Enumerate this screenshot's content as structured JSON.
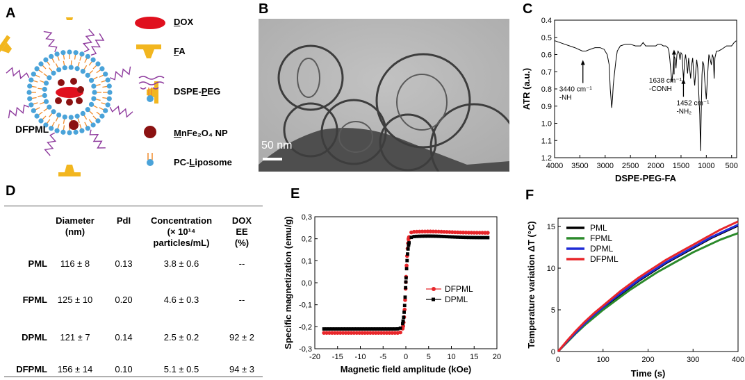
{
  "panels": {
    "A": "A",
    "B": "B",
    "C": "C",
    "D": "D",
    "E": "E",
    "F": "F"
  },
  "panel_a": {
    "particle_label": "DFPML",
    "legend": [
      {
        "prefix": "",
        "underline": "D",
        "suffix": "OX",
        "icon": "dox-ellipse-icon"
      },
      {
        "prefix": "",
        "underline": "F",
        "suffix": "A",
        "icon": "fa-ligand-icon"
      },
      {
        "prefix": "DSPE-",
        "underline": "P",
        "suffix": "EG",
        "icon": "dspe-peg-icon"
      },
      {
        "prefix": "",
        "underline": "M",
        "suffix": "nFe₂O₄ NP",
        "icon": "mnfe2o4-np-icon"
      },
      {
        "prefix": "PC-",
        "underline": "L",
        "suffix": "iposome",
        "icon": "pc-liposome-icon"
      }
    ],
    "colors": {
      "dox": "#e0101e",
      "fa": "#f2b61f",
      "peg": "#8e3a9d",
      "np": "#8b1212",
      "lipid_head": "#4aa3d9",
      "lipid_tail": "#f08a2a"
    }
  },
  "panel_b": {
    "scale_bar": "50 nm"
  },
  "table_d": {
    "headers": [
      "Diameter (nm)",
      "PdI",
      "Concentration (× 10¹⁴ particles/mL)",
      "DOX EE (%)"
    ],
    "header_lines": [
      [
        "Diameter",
        "(nm)"
      ],
      [
        "PdI"
      ],
      [
        "Concentration",
        "(× 10¹⁴",
        "particles/mL)"
      ],
      [
        "DOX",
        "EE",
        "(%)"
      ]
    ],
    "rows": [
      {
        "name": "PML",
        "diameter": "116 ± 8",
        "pdi": "0.13",
        "conc": "3.8 ± 0.6",
        "ee": "--"
      },
      {
        "name": "FPML",
        "diameter": "125 ± 10",
        "pdi": "0.20",
        "conc": "4.6 ± 0.3",
        "ee": "--"
      },
      {
        "name": "DPML",
        "diameter": "121 ± 7",
        "pdi": "0.14",
        "conc": "2.5 ± 0.2",
        "ee": "92 ± 2"
      },
      {
        "name": "DFPML",
        "diameter": "156 ± 14",
        "pdi": "0.10",
        "conc": "5.1 ± 0.5",
        "ee": "94 ± 3"
      }
    ]
  },
  "chart_data": [
    {
      "id": "C",
      "type": "line",
      "xlabel": "DSPE-PEG-FA",
      "ylabel": "ATR (a.u.)",
      "xlim": [
        4000,
        400
      ],
      "ylim": [
        1.2,
        0.4
      ],
      "x_ticks": [
        "4000",
        "3500",
        "3000",
        "2500",
        "2000",
        "1500",
        "1000",
        "500"
      ],
      "y_ticks": [
        "0.4",
        "0.5",
        "0.6",
        "0.7",
        "0.8",
        "0.9",
        "1.0",
        "1.1",
        "1.2"
      ],
      "series": [
        {
          "color": "#000000",
          "x": [
            3995,
            3800,
            3600,
            3450,
            3380,
            3300,
            3200,
            3100,
            3020,
            2960,
            2920,
            2900,
            2885,
            2870,
            2855,
            2840,
            2820,
            2790,
            2760,
            2700,
            2600,
            2500,
            2400,
            2300,
            2250,
            2200,
            2100,
            2000,
            1960,
            1900,
            1850,
            1800,
            1760,
            1740,
            1720,
            1700,
            1680,
            1660,
            1640,
            1620,
            1600,
            1580,
            1560,
            1540,
            1520,
            1500,
            1480,
            1465,
            1450,
            1430,
            1410,
            1390,
            1370,
            1350,
            1330,
            1310,
            1290,
            1270,
            1250,
            1230,
            1210,
            1190,
            1170,
            1150,
            1130,
            1115,
            1100,
            1085,
            1070,
            1050,
            1030,
            1000,
            970,
            950,
            930,
            900,
            880,
            860,
            845,
            830,
            800,
            760,
            700,
            650,
            600,
            550,
            500,
            450,
            410
          ],
          "y": [
            0.52,
            0.54,
            0.56,
            0.58,
            0.58,
            0.57,
            0.56,
            0.56,
            0.57,
            0.6,
            0.66,
            0.8,
            0.85,
            0.91,
            0.86,
            0.78,
            0.72,
            0.64,
            0.58,
            0.55,
            0.54,
            0.54,
            0.55,
            0.55,
            0.53,
            0.55,
            0.55,
            0.55,
            0.54,
            0.54,
            0.55,
            0.55,
            0.56,
            0.58,
            0.63,
            0.7,
            0.76,
            0.7,
            0.61,
            0.62,
            0.68,
            0.6,
            0.58,
            0.59,
            0.63,
            0.59,
            0.6,
            0.68,
            0.75,
            0.64,
            0.6,
            0.65,
            0.71,
            0.62,
            0.68,
            0.74,
            0.66,
            0.62,
            0.71,
            0.78,
            0.7,
            0.63,
            0.68,
            0.82,
            0.95,
            1.16,
            0.92,
            0.72,
            0.64,
            0.66,
            0.75,
            0.86,
            0.7,
            0.6,
            0.62,
            0.66,
            0.6,
            0.62,
            0.74,
            0.62,
            0.58,
            0.58,
            0.57,
            0.56,
            0.55,
            0.55,
            0.55,
            0.53,
            0.52
          ]
        }
      ],
      "annotations": [
        {
          "x": 3440,
          "text_lines": [
            "3440 cm⁻¹",
            "-NH"
          ]
        },
        {
          "x": 1638,
          "text_lines": [
            "1638 cm⁻¹",
            "-CONH"
          ]
        },
        {
          "x": 1452,
          "text_lines": [
            "1452 cm⁻¹",
            "-NH₂"
          ]
        }
      ]
    },
    {
      "id": "E",
      "type": "scatter",
      "xlabel": "Magnetic field amplitude (kOe)",
      "ylabel": "Specific magnetization (emu/g)",
      "xlim": [
        -20,
        20
      ],
      "ylim": [
        -0.3,
        0.3
      ],
      "x_ticks": [
        "-20",
        "-15",
        "-10",
        "-5",
        "0",
        "5",
        "10",
        "15",
        "20"
      ],
      "y_ticks": [
        "-0,3",
        "-0,2",
        "-0,1",
        "0,0",
        "0,1",
        "0,2",
        "0,3"
      ],
      "legend_position": "center-right",
      "series": [
        {
          "name": "DFPML",
          "color": "#e8262a",
          "marker": "circle",
          "sat": 0.227,
          "peak": 0.233,
          "low": -0.228,
          "width": 0.45
        },
        {
          "name": "DPML",
          "color": "#000000",
          "marker": "square",
          "sat": 0.205,
          "peak": 0.212,
          "low": -0.21,
          "width": 0.5
        }
      ]
    },
    {
      "id": "F",
      "type": "line",
      "xlabel": "Time (s)",
      "ylabel": "Temperature variation ΔT (°C)",
      "xlim": [
        0,
        400
      ],
      "ylim": [
        0,
        16
      ],
      "x_ticks": [
        "0",
        "100",
        "200",
        "300",
        "400"
      ],
      "y_ticks": [
        "0",
        "5",
        "10",
        "15"
      ],
      "legend_position": "top-left",
      "x": [
        0,
        20,
        40,
        60,
        80,
        100,
        120,
        140,
        160,
        180,
        200,
        220,
        240,
        260,
        280,
        300,
        320,
        340,
        360,
        380,
        400
      ],
      "series": [
        {
          "name": "PML",
          "color": "#000000",
          "values": [
            0,
            1.2,
            2.3,
            3.3,
            4.3,
            5.2,
            6.1,
            6.9,
            7.7,
            8.5,
            9.2,
            9.9,
            10.6,
            11.2,
            11.8,
            12.4,
            13.0,
            13.6,
            14.1,
            14.6,
            15.1
          ]
        },
        {
          "name": "FPML",
          "color": "#2b8a2b",
          "values": [
            0,
            1.1,
            2.2,
            3.2,
            4.1,
            5.0,
            5.8,
            6.6,
            7.4,
            8.1,
            8.8,
            9.5,
            10.1,
            10.7,
            11.3,
            11.9,
            12.4,
            12.9,
            13.4,
            13.8,
            14.2
          ]
        },
        {
          "name": "DPML",
          "color": "#1f2bd6",
          "values": [
            0,
            1.2,
            2.3,
            3.4,
            4.4,
            5.3,
            6.2,
            7.0,
            7.8,
            8.6,
            9.3,
            10.0,
            10.7,
            11.3,
            11.9,
            12.5,
            13.1,
            13.7,
            14.2,
            14.7,
            15.2
          ]
        },
        {
          "name": "DFPML",
          "color": "#e8262a",
          "values": [
            0,
            1.3,
            2.5,
            3.6,
            4.6,
            5.5,
            6.4,
            7.3,
            8.1,
            8.9,
            9.6,
            10.3,
            11.0,
            11.6,
            12.2,
            12.8,
            13.4,
            14.0,
            14.6,
            15.1,
            15.6
          ]
        }
      ]
    }
  ]
}
